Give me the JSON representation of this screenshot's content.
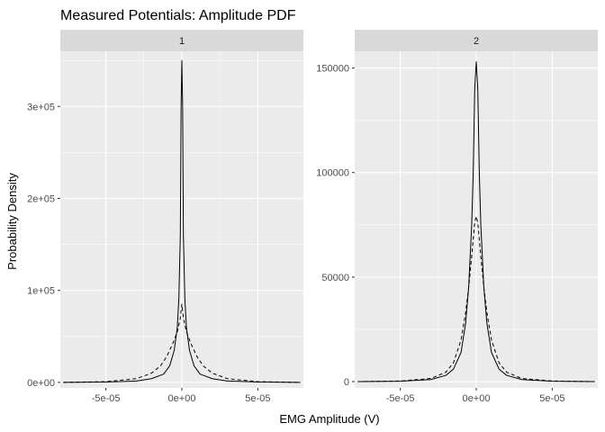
{
  "chart_data": {
    "type": "line",
    "title": "Measured Potentials: Amplitude PDF",
    "xlabel": "EMG Amplitude (V)",
    "ylabel": "Probability Density",
    "grid": true,
    "panels": [
      {
        "strip": "1",
        "xlim": [
          -8e-05,
          8e-05
        ],
        "ylim": [
          -6000,
          360000
        ],
        "x_ticks": [
          -5e-05,
          0,
          5e-05
        ],
        "x_tick_labels": [
          "-5e-05",
          "0e+00",
          "5e-05"
        ],
        "y_ticks": [
          0,
          100000,
          200000,
          300000
        ],
        "y_tick_labels": [
          "0e+00",
          "1e+05",
          "2e+05",
          "3e+05"
        ],
        "series": [
          {
            "line": "solid",
            "x": [
              -7.8e-05,
              -5e-05,
              -3e-05,
              -2e-05,
              -1.2e-05,
              -8e-06,
              -5e-06,
              -3e-06,
              -2e-06,
              -1e-06,
              -5e-07,
              0,
              5e-07,
              1e-06,
              2e-06,
              3e-06,
              5e-06,
              8e-06,
              1.2e-05,
              2e-05,
              3e-05,
              5e-05,
              7.8e-05
            ],
            "values": [
              0,
              300,
              1500,
              4000,
              9000,
              18000,
              35000,
              60000,
              90000,
              160000,
              300000,
              350000,
              300000,
              160000,
              90000,
              60000,
              35000,
              18000,
              9000,
              4000,
              1500,
              300,
              0
            ]
          },
          {
            "line": "dashed",
            "x": [
              -7.8e-05,
              -5e-05,
              -3e-05,
              -2e-05,
              -1.4e-05,
              -1e-05,
              -6e-06,
              -3e-06,
              -1e-06,
              0,
              1e-06,
              3e-06,
              6e-06,
              1e-05,
              1.4e-05,
              2e-05,
              3e-05,
              5e-05,
              7.8e-05
            ],
            "values": [
              0,
              800,
              4000,
              10000,
              18000,
              28000,
              42000,
              55000,
              70000,
              85000,
              70000,
              55000,
              42000,
              28000,
              18000,
              10000,
              4000,
              800,
              0
            ]
          }
        ]
      },
      {
        "strip": "2",
        "xlim": [
          -8e-05,
          8e-05
        ],
        "ylim": [
          -3000,
          158000
        ],
        "x_ticks": [
          -5e-05,
          0,
          5e-05
        ],
        "x_tick_labels": [
          "-5e-05",
          "0e+00",
          "5e-05"
        ],
        "y_ticks": [
          0,
          50000,
          100000,
          150000
        ],
        "y_tick_labels": [
          "0",
          "50000",
          "100000",
          "150000"
        ],
        "series": [
          {
            "line": "solid",
            "x": [
              -7.8e-05,
              -5e-05,
              -3e-05,
              -2e-05,
              -1.5e-05,
              -1e-05,
              -7e-06,
              -5e-06,
              -3e-06,
              -2e-06,
              -1e-06,
              0,
              1e-06,
              2e-06,
              3e-06,
              5e-06,
              7e-06,
              1e-05,
              1.5e-05,
              2e-05,
              3e-05,
              5e-05,
              7.8e-05
            ],
            "values": [
              0,
              200,
              1000,
              3000,
              6000,
              14000,
              28000,
              45000,
              75000,
              100000,
              140000,
              153000,
              140000,
              100000,
              75000,
              45000,
              28000,
              14000,
              6000,
              3000,
              1000,
              200,
              0
            ]
          },
          {
            "line": "dashed",
            "x": [
              -7.8e-05,
              -5e-05,
              -3e-05,
              -2e-05,
              -1.5e-05,
              -1e-05,
              -7e-06,
              -5e-06,
              -3e-06,
              -1e-06,
              0,
              1e-06,
              3e-06,
              5e-06,
              7e-06,
              1e-05,
              1.5e-05,
              2e-05,
              3e-05,
              5e-05,
              7.8e-05
            ],
            "values": [
              0,
              300,
              1500,
              4500,
              9000,
              20000,
              33000,
              45000,
              60000,
              76000,
              79000,
              76000,
              60000,
              45000,
              33000,
              20000,
              9000,
              4500,
              1500,
              300,
              0
            ]
          }
        ]
      }
    ]
  }
}
